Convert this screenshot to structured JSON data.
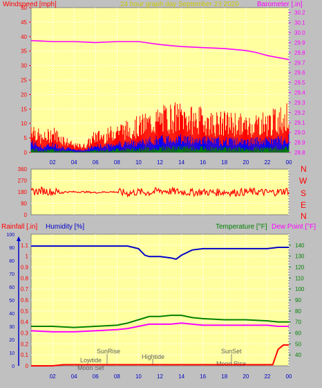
{
  "header": {
    "left_label": "Windspeed [mph]",
    "center_label": "24 hour graph day   September 23 2020",
    "right_label": "Barometer [.in]"
  },
  "mid": {
    "dir_letters": [
      "N",
      "W",
      "S",
      "E",
      "N"
    ]
  },
  "bottom": {
    "rain_label": "Rainfall [.in]",
    "humidity_label": "Humidity [%]",
    "temp_label": "Temperature [°F]",
    "dew_label": "Dew Point [°F]",
    "annotations": [
      "SunRise",
      "Lowtide",
      "Moon Set",
      "Hightide",
      "SunSet",
      "Moon Rise"
    ]
  },
  "colors": {
    "plot_bg": "#ffffa0",
    "page_bg": "#c0c0c0",
    "wind": "#ff0000",
    "gust_inner": "#0000ff",
    "wind_low": "#008000",
    "barometer": "#ff00ff",
    "humidity": "#0000c8",
    "temperature": "#008000",
    "dewpoint": "#ff00ff",
    "rain": "#ff0000",
    "title_yellow": "#c8c800"
  },
  "chart_data": [
    {
      "type": "line",
      "title": "24 hour graph day   September 23 2020",
      "x_ticks": [
        "02",
        "04",
        "06",
        "08",
        "10",
        "12",
        "14",
        "16",
        "18",
        "20",
        "22",
        "00"
      ],
      "xlim": [
        0,
        24
      ],
      "ylabel": "Windspeed [mph]",
      "ylim": [
        0,
        50
      ],
      "y_ticks": [
        0,
        5,
        10,
        15,
        20,
        25,
        30,
        35,
        40,
        45,
        50
      ],
      "y2label": "Barometer [.in]",
      "y2lim": [
        28.8,
        30.25
      ],
      "y2_ticks": [
        28.8,
        28.9,
        29.0,
        29.1,
        29.2,
        29.3,
        29.4,
        29.5,
        29.6,
        29.7,
        29.8,
        29.9,
        30.0,
        30.1,
        30.2
      ],
      "grid": true,
      "series": [
        {
          "name": "Barometer [.in]",
          "axis": "right",
          "x": [
            0,
            2,
            4,
            6,
            8,
            9,
            10,
            12,
            14,
            16,
            18,
            20,
            21,
            22,
            23,
            24
          ],
          "values": [
            29.92,
            29.91,
            29.91,
            29.9,
            29.91,
            29.91,
            29.91,
            29.88,
            29.86,
            29.85,
            29.84,
            29.82,
            29.8,
            29.77,
            29.75,
            29.73
          ]
        },
        {
          "name": "Windspeed [mph]",
          "axis": "left",
          "x": [
            0,
            1,
            2,
            3,
            4,
            5,
            6,
            7,
            8,
            9,
            10,
            11,
            12,
            13,
            14,
            15,
            16,
            17,
            18,
            19,
            20,
            21,
            22,
            23,
            24
          ],
          "values": [
            8,
            4,
            6,
            4,
            2,
            2,
            5,
            5,
            7,
            7,
            8,
            9,
            10,
            11,
            11,
            10,
            10,
            9,
            9,
            9,
            8,
            9,
            9,
            10,
            11
          ]
        }
      ]
    },
    {
      "type": "line",
      "x_ticks": [
        "02",
        "04",
        "06",
        "08",
        "10",
        "12",
        "14",
        "16",
        "18",
        "20",
        "22",
        "00"
      ],
      "xlim": [
        0,
        24
      ],
      "ylim": [
        0,
        360
      ],
      "y_ticks": [
        0,
        90,
        180,
        270,
        360
      ],
      "grid": true,
      "series": [
        {
          "name": "Wind direction",
          "x": [
            0,
            1,
            2,
            3,
            4,
            5,
            6,
            7,
            8,
            9,
            10,
            11,
            12,
            13,
            14,
            15,
            16,
            17,
            18,
            19,
            20,
            21,
            22,
            23,
            24
          ],
          "values": [
            180,
            190,
            180,
            180,
            180,
            180,
            175,
            180,
            180,
            170,
            180,
            175,
            190,
            185,
            180,
            175,
            180,
            175,
            180,
            175,
            180,
            180,
            175,
            180,
            190
          ]
        }
      ]
    },
    {
      "type": "line",
      "x_ticks": [
        "02",
        "04",
        "06",
        "08",
        "10",
        "12",
        "14",
        "16",
        "18",
        "20",
        "22",
        "00"
      ],
      "xlim": [
        0,
        24
      ],
      "y_rain_label": "Rainfall [.in]",
      "y_rain_lim": [
        0,
        1.2
      ],
      "y_rain_ticks": [
        0,
        0.1,
        0.2,
        0.3,
        0.4,
        0.5,
        0.6,
        0.7,
        0.8,
        0.9,
        1,
        1.1
      ],
      "y_hum_label": "Humidity [%]",
      "y_hum_lim": [
        0,
        100
      ],
      "y_hum_ticks": [
        0,
        10,
        20,
        30,
        40,
        50,
        60,
        70,
        80,
        90,
        100
      ],
      "y_temp_label": "Temperature [°F]",
      "y_temp_lim": [
        30,
        150
      ],
      "y_temp_ticks": [
        40,
        50,
        60,
        70,
        80,
        90,
        100,
        110,
        120,
        130,
        140
      ],
      "grid": true,
      "series": [
        {
          "name": "Humidity [%]",
          "axis": "humidity",
          "x": [
            0,
            2,
            4,
            6,
            8,
            9,
            10,
            10.6,
            11,
            12,
            13,
            13.5,
            14,
            15,
            16,
            18,
            20,
            22,
            23,
            24
          ],
          "values": [
            91,
            91,
            91,
            91,
            91,
            91,
            89,
            84,
            83,
            83,
            82,
            81,
            84,
            88,
            89,
            89,
            89,
            89,
            90,
            90
          ]
        },
        {
          "name": "Temperature [°F]",
          "axis": "temp",
          "x": [
            0,
            2,
            4,
            6,
            8,
            9,
            10,
            11,
            12,
            13,
            14,
            15,
            16,
            18,
            20,
            22,
            23,
            24
          ],
          "values": [
            66,
            66,
            65,
            66,
            67,
            69,
            72,
            75,
            75,
            76,
            76,
            74,
            73,
            72,
            72,
            71,
            70,
            70
          ]
        },
        {
          "name": "Dew Point [°F]",
          "axis": "temp",
          "x": [
            0,
            2,
            4,
            6,
            8,
            9,
            10,
            11,
            12,
            13,
            14,
            15,
            16,
            18,
            20,
            22,
            23,
            24
          ],
          "values": [
            62,
            61,
            61,
            62,
            63,
            64,
            66,
            68,
            68,
            68,
            69,
            68,
            67,
            67,
            67,
            67,
            66,
            66
          ]
        },
        {
          "name": "Rainfall [.in]",
          "axis": "rain",
          "x": [
            0,
            1,
            2,
            3,
            4,
            5,
            6,
            7,
            8,
            9,
            10,
            11,
            12,
            13,
            14,
            15,
            16,
            17,
            18,
            19,
            20,
            21,
            22,
            22.5,
            23,
            23.5,
            24
          ],
          "values": [
            0,
            0,
            0,
            0.01,
            0.01,
            0.01,
            0.01,
            0.01,
            0.01,
            0.01,
            0.01,
            0.01,
            0.01,
            0.01,
            0.01,
            0.01,
            0.01,
            0.01,
            0.01,
            0.01,
            0.01,
            0.01,
            0.01,
            0.01,
            0.15,
            0.19,
            0.19
          ]
        }
      ]
    }
  ]
}
